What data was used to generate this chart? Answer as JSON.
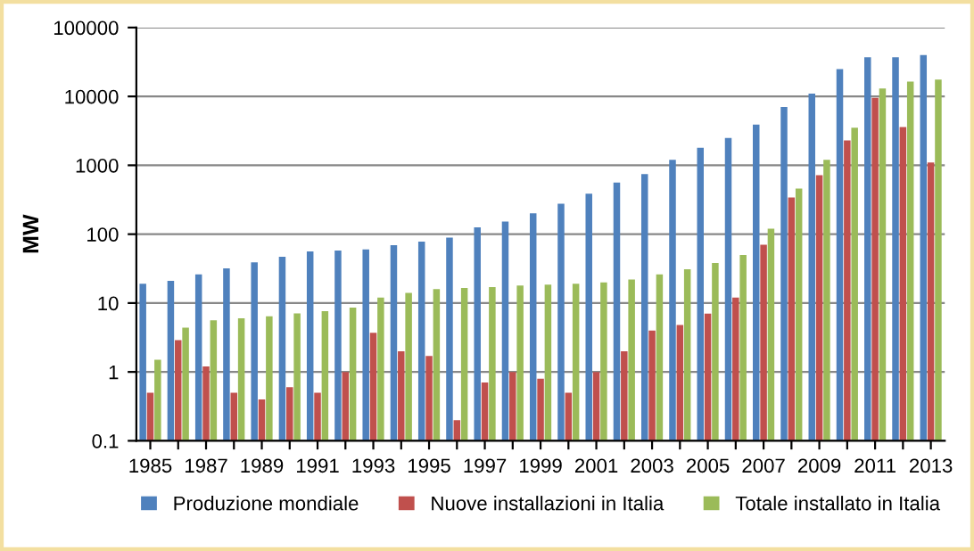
{
  "chart_data": {
    "type": "bar",
    "ylabel": "MW",
    "log": true,
    "ylim": [
      0.1,
      100000
    ],
    "yticks": [
      0.1,
      1,
      10,
      100,
      1000,
      10000,
      100000
    ],
    "grid": "y",
    "legend": "bottom",
    "categories": [
      "1985",
      null,
      "1987",
      null,
      "1989",
      null,
      "1991",
      null,
      "1993",
      null,
      "1995",
      null,
      "1997",
      null,
      "1999",
      null,
      "2001",
      null,
      "2003",
      null,
      "2005",
      null,
      "2007",
      null,
      "2009",
      null,
      "2011",
      null,
      "2013"
    ],
    "series": [
      {
        "name": "Produzione mondiale",
        "color": "#4f81bd",
        "values": [
          19,
          21,
          26,
          32,
          39,
          47,
          56,
          58,
          60,
          69,
          78,
          89,
          126,
          153,
          201,
          277,
          386,
          560,
          747,
          1200,
          1800,
          2500,
          3900,
          7000,
          11000,
          25000,
          37000,
          37000,
          40000
        ]
      },
      {
        "name": "Nuove installazioni in Italia",
        "color": "#c0504d",
        "values": [
          0.5,
          2.9,
          1.2,
          0.5,
          0.4,
          0.6,
          0.5,
          1.0,
          3.7,
          2.0,
          1.7,
          0.2,
          0.7,
          1.0,
          0.8,
          0.5,
          1.0,
          2.0,
          4.0,
          4.8,
          7,
          12,
          70,
          340,
          720,
          2300,
          9500,
          3600,
          1100
        ]
      },
      {
        "name": "Totale installato in Italia",
        "color": "#9bbb59",
        "values": [
          1.5,
          4.4,
          5.6,
          6,
          6.4,
          7.1,
          7.6,
          8.6,
          12,
          14,
          16,
          16.5,
          17,
          18,
          18.5,
          19,
          20,
          22,
          26,
          31,
          38,
          50,
          120,
          460,
          1200,
          3500,
          13000,
          16400,
          17600
        ]
      }
    ]
  }
}
